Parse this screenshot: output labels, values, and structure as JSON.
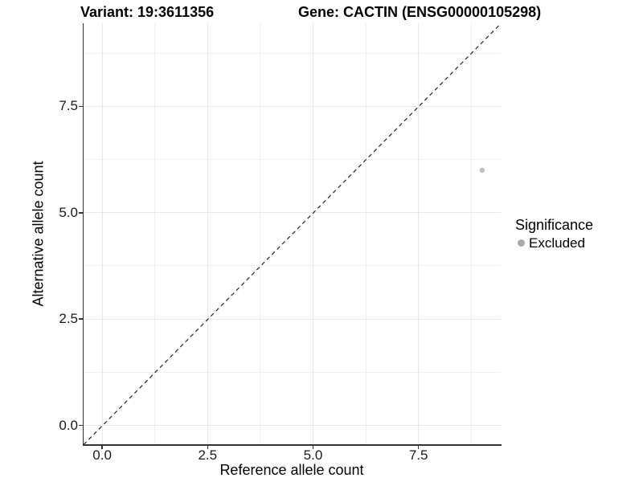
{
  "chart_data": {
    "type": "scatter",
    "title_left": "Variant: 19:3611356",
    "title_right": "Gene: CACTIN (ENSG00000105298)",
    "xlabel": "Reference allele count",
    "ylabel": "Alternative allele count",
    "xlim": [
      -0.45,
      9.45
    ],
    "ylim": [
      -0.45,
      9.45
    ],
    "xticks": [
      0,
      2.5,
      5,
      7.5
    ],
    "yticks": [
      0,
      2.5,
      5,
      7.5
    ],
    "xtick_labels": [
      "0.0",
      "2.5",
      "5.0",
      "7.5"
    ],
    "ytick_labels": [
      "0.0",
      "2.5",
      "5.0",
      "7.5"
    ],
    "minor_gridlines": [
      1.25,
      3.75,
      6.25,
      8.75
    ],
    "grid": "on",
    "points": [
      {
        "x": 9,
        "y": 6,
        "series": "Excluded"
      }
    ],
    "identity_line": {
      "style": "dashed",
      "equation": "y = x",
      "color": "#222222"
    },
    "legend": {
      "title": "Significance",
      "position": "right",
      "items": [
        {
          "label": "Excluded",
          "color": "#a9a9a9"
        }
      ]
    },
    "colors": {
      "point": "#bdbdbd",
      "grid_major": "#e8e8e8",
      "grid_minor": "#f0f0f0",
      "axis": "#333333",
      "background": "#ffffff"
    }
  }
}
